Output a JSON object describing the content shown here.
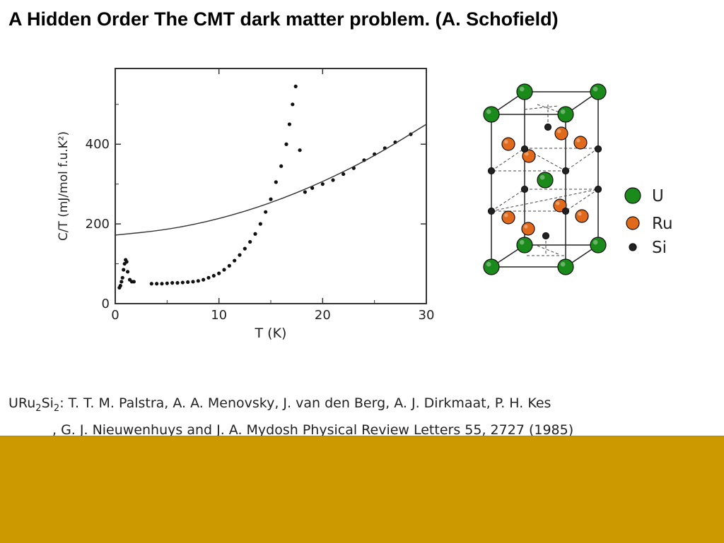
{
  "title": "A Hidden Order The CMT dark matter problem. (A. Schofield)",
  "chart_data": {
    "type": "scatter",
    "xlabel": "T (K)",
    "ylabel": "C/T (mJ/mol f.u.K²)",
    "xlim": [
      0,
      30
    ],
    "ylim": [
      0,
      590
    ],
    "xticks": [
      0,
      10,
      20,
      30
    ],
    "yticks": [
      0,
      200,
      400
    ],
    "grid": false,
    "series": [
      {
        "kind": "points",
        "points": [
          [
            0.4,
            40
          ],
          [
            0.5,
            45
          ],
          [
            0.6,
            55
          ],
          [
            0.7,
            65
          ],
          [
            0.8,
            85
          ],
          [
            0.9,
            100
          ],
          [
            1.0,
            110
          ],
          [
            1.1,
            105
          ],
          [
            1.2,
            80
          ],
          [
            1.4,
            60
          ],
          [
            1.6,
            55
          ],
          [
            1.8,
            55
          ],
          [
            3.5,
            50
          ],
          [
            4.0,
            50
          ],
          [
            4.5,
            50
          ],
          [
            5.0,
            51
          ],
          [
            5.5,
            52
          ],
          [
            6.0,
            52
          ],
          [
            6.5,
            53
          ],
          [
            7.0,
            54
          ],
          [
            7.5,
            55
          ],
          [
            8.0,
            57
          ],
          [
            8.5,
            60
          ],
          [
            9.0,
            65
          ],
          [
            9.5,
            70
          ],
          [
            10.0,
            76
          ],
          [
            10.5,
            85
          ],
          [
            11.0,
            95
          ],
          [
            11.5,
            108
          ],
          [
            12.0,
            122
          ],
          [
            12.5,
            138
          ],
          [
            13.0,
            155
          ],
          [
            13.5,
            175
          ],
          [
            14.0,
            200
          ],
          [
            14.5,
            230
          ],
          [
            15.0,
            262
          ],
          [
            15.5,
            305
          ],
          [
            16.0,
            345
          ],
          [
            16.5,
            400
          ],
          [
            16.8,
            450
          ],
          [
            17.1,
            500
          ],
          [
            17.4,
            545
          ],
          [
            17.8,
            385
          ],
          [
            18.3,
            280
          ],
          [
            19,
            290
          ],
          [
            20,
            300
          ],
          [
            21,
            310
          ],
          [
            22,
            325
          ],
          [
            23,
            340
          ],
          [
            24,
            360
          ],
          [
            25,
            375
          ],
          [
            26,
            390
          ],
          [
            27,
            405
          ],
          [
            28.5,
            425
          ]
        ]
      },
      {
        "kind": "line",
        "points": [
          [
            0,
            172
          ],
          [
            5,
            185
          ],
          [
            10,
            212
          ],
          [
            15,
            252
          ],
          [
            20,
            305
          ],
          [
            25,
            370
          ],
          [
            30,
            450
          ]
        ]
      }
    ]
  },
  "crystal": {
    "legend": [
      {
        "label": "U",
        "color": "#1a8a1a"
      },
      {
        "label": "Ru",
        "color": "#e06a1a"
      },
      {
        "label": "Si",
        "color": "#222222"
      }
    ]
  },
  "citation": {
    "compound_prefix": "URu",
    "compound_sub1": "2",
    "compound_mid": "Si",
    "compound_sub2": "2",
    "line1_rest": ": T. T. M. Palstra, A. A. Menovsky, J. van den Berg, A. J. Dirkmaat, P. H. Kes",
    "line2_pre": ", G. J. Nieuwenhuys and J. A. Mydosh  Physical Review Letters ",
    "volume": "55",
    "line2_post": ", 2727 (1985)"
  }
}
